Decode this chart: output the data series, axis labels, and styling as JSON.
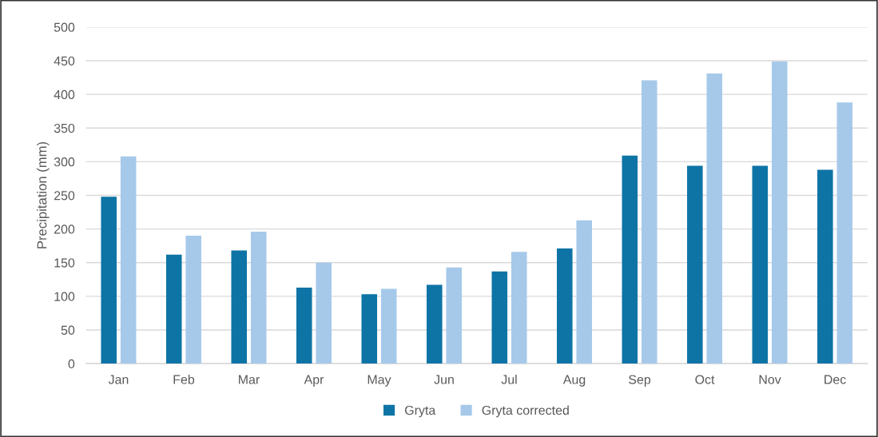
{
  "chart_data": {
    "type": "bar",
    "ylabel": "Precipitation (mm)",
    "categories": [
      "Jan",
      "Feb",
      "Mar",
      "Apr",
      "May",
      "Jun",
      "Jul",
      "Aug",
      "Sep",
      "Oct",
      "Nov",
      "Dec"
    ],
    "series": [
      {
        "name": "Gryta",
        "color": "#0e74a6",
        "values": [
          248,
          162,
          168,
          113,
          103,
          117,
          137,
          171,
          309,
          294,
          294,
          288
        ]
      },
      {
        "name": "Gryta corrected",
        "color": "#a6c9ea",
        "values": [
          308,
          190,
          196,
          150,
          111,
          143,
          166,
          213,
          421,
          431,
          449,
          388
        ]
      }
    ],
    "ylim": [
      0,
      500
    ],
    "yticks": [
      0,
      50,
      100,
      150,
      200,
      250,
      300,
      350,
      400,
      450,
      500
    ],
    "grid": "y",
    "legend": "bottom"
  }
}
